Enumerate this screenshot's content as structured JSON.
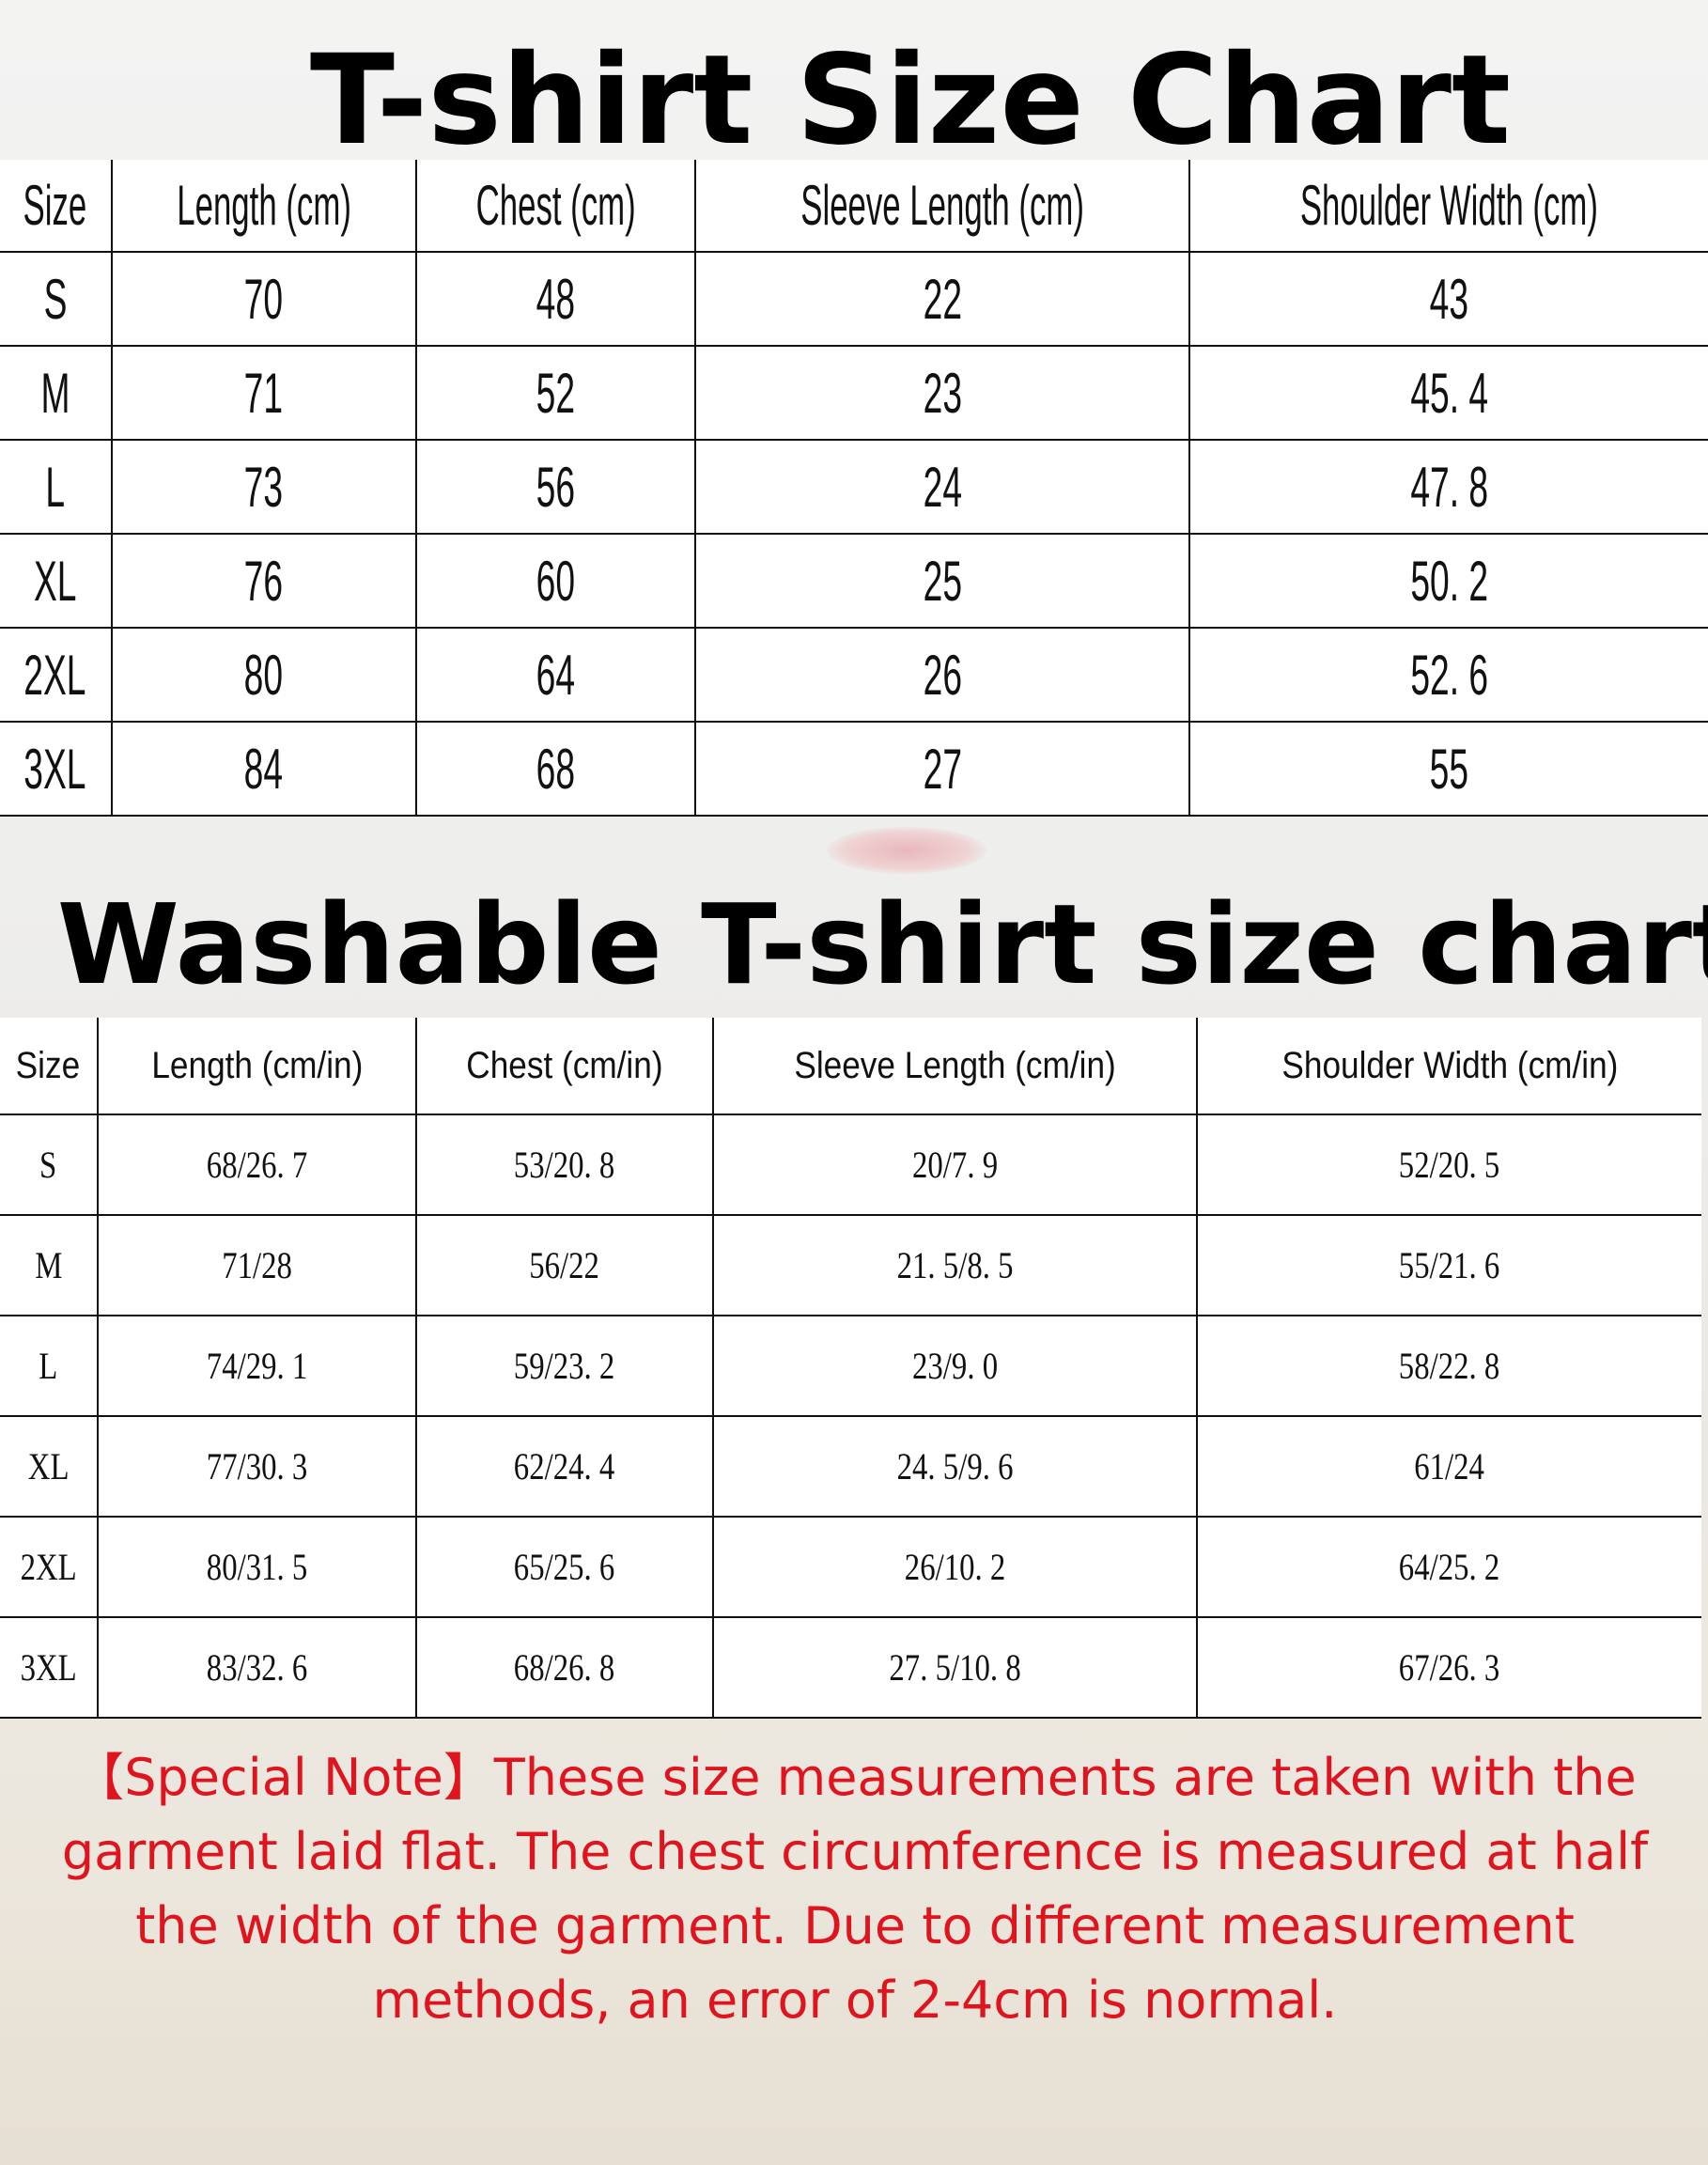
{
  "chart1": {
    "title": "T-shirt Size Chart",
    "headers": [
      "Size",
      "Length (cm)",
      "Chest (cm)",
      "Sleeve Length (cm)",
      "Shoulder Width (cm)"
    ],
    "rows": [
      [
        "S",
        "70",
        "48",
        "22",
        "43"
      ],
      [
        "M",
        "71",
        "52",
        "23",
        "45. 4"
      ],
      [
        "L",
        "73",
        "56",
        "24",
        "47. 8"
      ],
      [
        "XL",
        "76",
        "60",
        "25",
        "50. 2"
      ],
      [
        "2XL",
        "80",
        "64",
        "26",
        "52. 6"
      ],
      [
        "3XL",
        "84",
        "68",
        "27",
        "55"
      ]
    ]
  },
  "chart2": {
    "title": "Washable T-shirt size chart",
    "headers": [
      "Size",
      "Length (cm/in)",
      "Chest (cm/in)",
      "Sleeve Length (cm/in)",
      "Shoulder Width (cm/in)"
    ],
    "rows": [
      [
        "S",
        "68/26. 7",
        "53/20. 8",
        "20/7. 9",
        "52/20. 5"
      ],
      [
        "M",
        "71/28",
        "56/22",
        "21. 5/8. 5",
        "55/21. 6"
      ],
      [
        "L",
        "74/29. 1",
        "59/23. 2",
        "23/9. 0",
        "58/22. 8"
      ],
      [
        "XL",
        "77/30. 3",
        "62/24. 4",
        "24. 5/9. 6",
        "61/24"
      ],
      [
        "2XL",
        "80/31. 5",
        "65/25. 6",
        "26/10. 2",
        "64/25. 2"
      ],
      [
        "3XL",
        "83/32. 6",
        "68/26. 8",
        "27. 5/10. 8",
        "67/26. 3"
      ]
    ]
  },
  "note": "【Special Note】These size measurements are taken with the garment laid flat. The chest circumference is measured at half the width of the garment. Due to different measurement methods, an error of 2-4cm is normal.",
  "colors": {
    "note": "#e0141e",
    "text": "#000000"
  }
}
